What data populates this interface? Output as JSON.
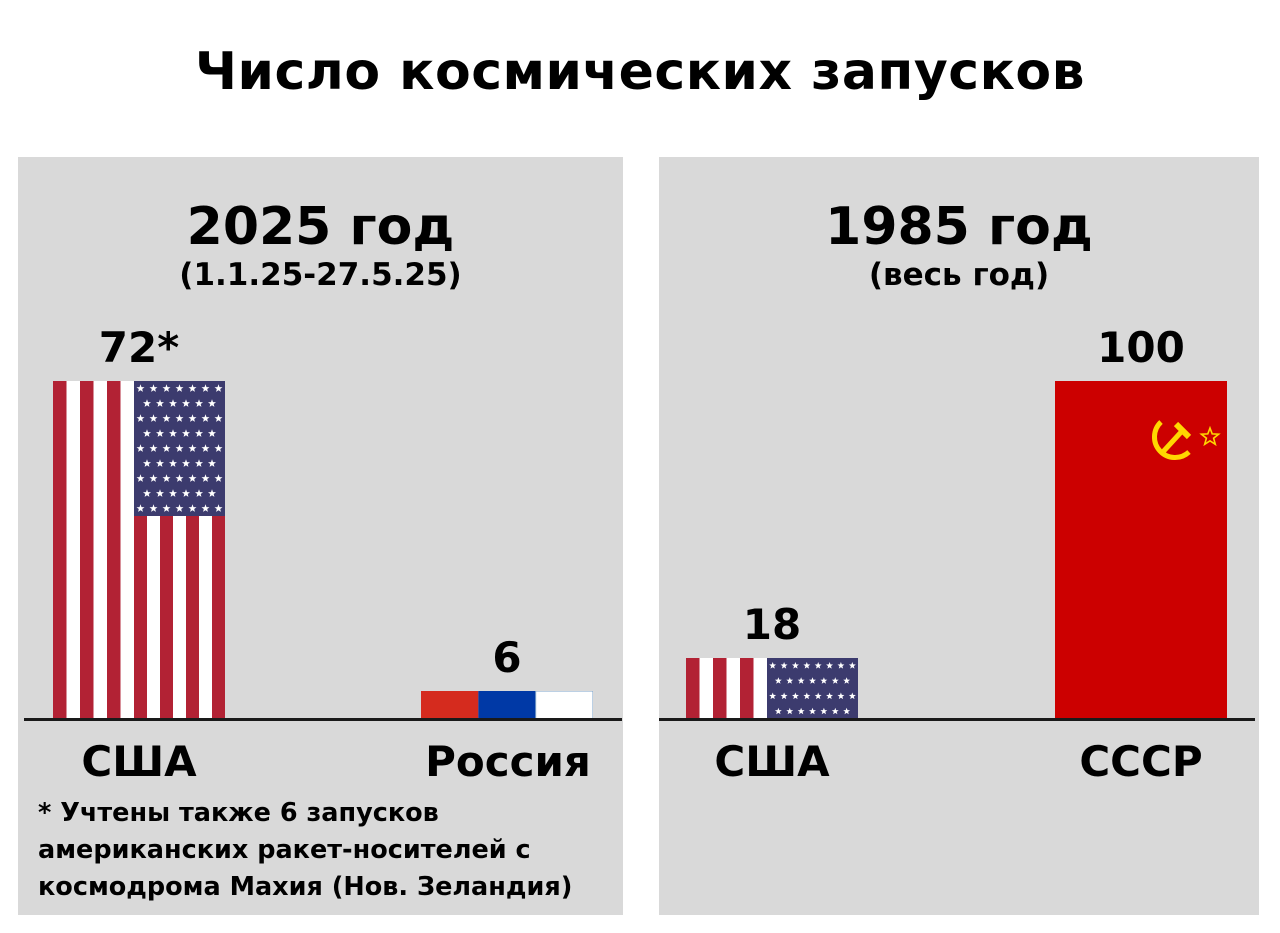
{
  "title": "Число космических запусков",
  "chart_data": [
    {
      "type": "bar",
      "title": "2025 год",
      "subtitle": "(1.1.25-27.5.25)",
      "categories": [
        "США",
        "Россия"
      ],
      "values": [
        72,
        6
      ],
      "value_labels": [
        "72*",
        "6"
      ],
      "ylim": [
        0,
        72
      ],
      "footnote": "* Учтены также 6 запусков американских ракет-носителей с космодрома Махия (Нов. Зеландия)"
    },
    {
      "type": "bar",
      "title": "1985 год",
      "subtitle": "(весь год)",
      "categories": [
        "США",
        "СССР"
      ],
      "values": [
        18,
        100
      ],
      "value_labels": [
        "18",
        "100"
      ],
      "ylim": [
        0,
        100
      ]
    }
  ],
  "colors": {
    "panel_bg": "#d9d9d9",
    "us_red": "#b22234",
    "us_blue": "#3c3b6e",
    "ru_white": "#ffffff",
    "ru_blue": "#0039a6",
    "ru_red": "#d52b1e",
    "ussr_red": "#cc0000",
    "ussr_gold": "#ffd700"
  },
  "icons": {
    "us_flag": "us-flag-icon",
    "ru_flag": "russia-flag-icon",
    "ussr_flag": "ussr-flag-icon"
  }
}
